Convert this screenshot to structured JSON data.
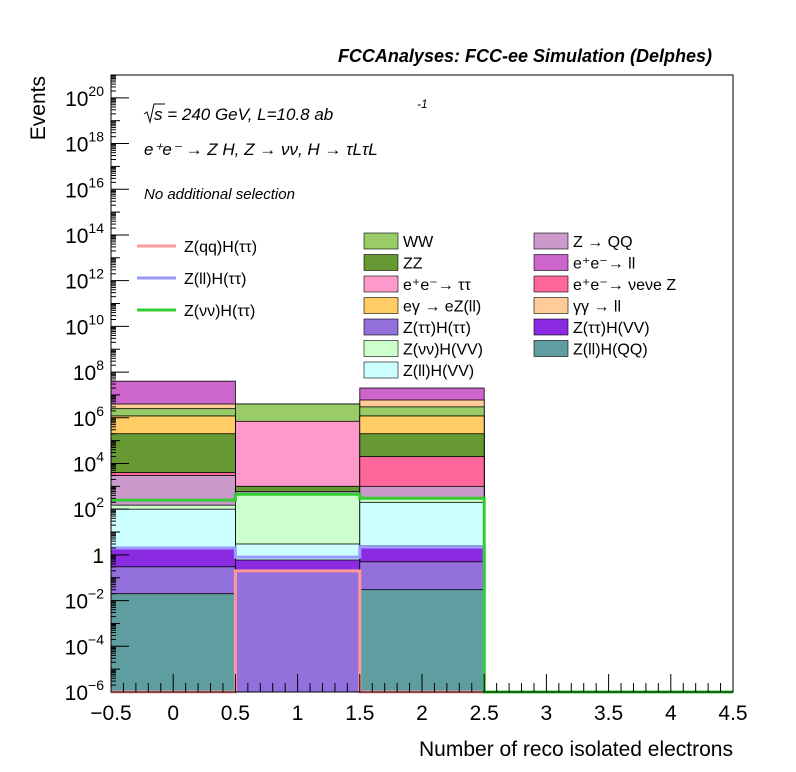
{
  "chart_data": {
    "type": "bar",
    "stacked": true,
    "log_y": true,
    "title": "FCCAnalyses: FCC-ee Simulation (Delphes)",
    "xlabel": "Number of reco isolated electrons",
    "ylabel": "Events",
    "xlim": [
      -0.5,
      4.5
    ],
    "ylim": [
      1e-06,
      1e+21
    ],
    "x_ticks": [
      "−0.5",
      "0",
      "0.5",
      "1",
      "1.5",
      "2",
      "2.5",
      "3",
      "3.5",
      "4",
      "4.5"
    ],
    "y_ticks": [
      {
        "base": "10",
        "exp": "−6",
        "value": 1e-06
      },
      {
        "base": "10",
        "exp": "−4",
        "value": 0.0001
      },
      {
        "base": "10",
        "exp": "−2",
        "value": 0.01
      },
      {
        "base": "1",
        "exp": "",
        "value": 1
      },
      {
        "base": "10",
        "exp": "2",
        "value": 100.0
      },
      {
        "base": "10",
        "exp": "4",
        "value": 10000.0
      },
      {
        "base": "10",
        "exp": "6",
        "value": 1000000.0
      },
      {
        "base": "10",
        "exp": "8",
        "value": 100000000.0
      },
      {
        "base": "10",
        "exp": "10",
        "value": 10000000000.0
      },
      {
        "base": "10",
        "exp": "12",
        "value": 1000000000000.0
      },
      {
        "base": "10",
        "exp": "14",
        "value": 100000000000000.0
      },
      {
        "base": "10",
        "exp": "16",
        "value": 1e+16
      },
      {
        "base": "10",
        "exp": "18",
        "value": 1e+18
      },
      {
        "base": "10",
        "exp": "20",
        "value": 1e+20
      }
    ],
    "annotations": {
      "energy_line": {
        "sqrt": "s",
        "text": " = 240 GeV, L=10.8 ab",
        "sup": "-1"
      },
      "process_line": "e⁺e⁻ → Z H, Z → νν, H → τLτL",
      "selection": "No additional selection"
    },
    "bins": [
      [
        -0.5,
        0.5
      ],
      [
        0.5,
        1.5
      ],
      [
        1.5,
        2.5
      ],
      [
        2.5,
        3.5
      ],
      [
        3.5,
        4.5
      ]
    ],
    "stack_boundaries": [
      {
        "color": "#5f9ea0",
        "bin_tops": [
          0.02,
          1e-06,
          0.03,
          0,
          0
        ]
      },
      {
        "color": "#9370db",
        "bin_tops": [
          0.3,
          0.2,
          0.5,
          0,
          0
        ]
      },
      {
        "color": "#8a2be2",
        "bin_tops": [
          2,
          0.6,
          2.5,
          0,
          0
        ]
      },
      {
        "color": "#ccffff",
        "bin_tops": [
          100,
          3,
          200,
          0,
          0
        ]
      },
      {
        "color": "#ccffcc",
        "bin_tops": [
          150,
          500,
          300,
          0,
          0
        ]
      },
      {
        "color": "#cc99cc",
        "bin_tops": [
          3000,
          600,
          1000,
          0,
          0
        ]
      },
      {
        "color": "#ff6699",
        "bin_tops": [
          4000,
          600,
          20000,
          0,
          0
        ]
      },
      {
        "color": "#669933",
        "bin_tops": [
          200000,
          1000,
          200000,
          0,
          0
        ]
      },
      {
        "color": "#ffcc66",
        "bin_tops": [
          1200000,
          1000,
          1200000,
          0,
          0
        ]
      },
      {
        "color": "#ff99cc",
        "bin_tops": [
          1200000,
          700000,
          1200000,
          0,
          0
        ]
      },
      {
        "color": "#99cc66",
        "bin_tops": [
          2500000,
          4000000,
          3000000,
          0,
          0
        ]
      },
      {
        "color": "#ffcc99",
        "bin_tops": [
          4000000,
          4000000,
          6000000,
          0,
          0
        ]
      },
      {
        "color": "#cc66cc",
        "bin_tops": [
          40000000,
          4000000,
          20000000,
          0,
          0
        ]
      }
    ],
    "lines": [
      {
        "name": "Z(qq)H(ττ)",
        "color": "#ff9999",
        "values": [
          1e-06,
          0.2,
          1e-06,
          1e-06,
          1e-06
        ]
      },
      {
        "name": "Z(ll)H(ττ)",
        "color": "#9999ff",
        "values": [
          2,
          0.8,
          2.2,
          1e-06,
          1e-06
        ]
      },
      {
        "name": "Z(νν)H(ττ)",
        "color": "#33cc33",
        "values": [
          250,
          450,
          300,
          1e-06,
          1e-06
        ]
      }
    ],
    "legend_lines": [
      {
        "name": "Z(qq)H(ττ)",
        "color": "#ff9999"
      },
      {
        "name": "Z(ll)H(ττ)",
        "color": "#9999ff"
      },
      {
        "name": "Z(νν)H(ττ)",
        "color": "#33cc33"
      }
    ],
    "legend_col2": [
      {
        "name": "WW",
        "color": "#99cc66"
      },
      {
        "name": "ZZ",
        "color": "#669933"
      },
      {
        "name": "e⁺e⁻→ ττ",
        "color": "#ff99cc"
      },
      {
        "name": "eγ → eZ(ll)",
        "color": "#ffcc66"
      },
      {
        "name": "Z(ττ)H(ττ)",
        "color": "#9370db"
      },
      {
        "name": "Z(νν)H(VV)",
        "color": "#ccffcc"
      },
      {
        "name": "Z(ll)H(VV)",
        "color": "#ccffff"
      }
    ],
    "legend_col3": [
      {
        "name": "Z → QQ",
        "color": "#cc99cc"
      },
      {
        "name": "e⁺e⁻→ ll",
        "color": "#cc66cc"
      },
      {
        "name": "e⁺e⁻→ νeνe Z",
        "color": "#ff6699"
      },
      {
        "name": "γγ → ll",
        "color": "#ffcc99"
      },
      {
        "name": "Z(ττ)H(VV)",
        "color": "#8a2be2"
      },
      {
        "name": "Z(ll)H(QQ)",
        "color": "#5f9ea0"
      }
    ]
  }
}
